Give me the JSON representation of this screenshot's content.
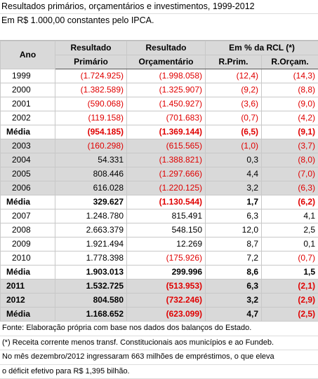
{
  "header": {
    "title": "Resultados primários, orçamentários  e investimentos, 1999-2012",
    "subtitle": "Em R$ 1.000,00 constantes pelo IPCA."
  },
  "table": {
    "head": [
      [
        "Ano",
        "Resultado",
        "Resultado",
        "Em % da RCL (*)"
      ],
      [
        "Primário",
        "Orçamentário",
        "R.Prim.",
        "R.Orçam."
      ]
    ],
    "rows": [
      [
        "1999",
        "(1.724.925)",
        "(1.998.058)",
        "(12,4)",
        "(14,3)"
      ],
      [
        "2000",
        "(1.382.589)",
        "(1.325.907)",
        "(9,2)",
        "(8,8)"
      ],
      [
        "2001",
        "(590.068)",
        "(1.450.927)",
        "(3,6)",
        "(9,0)"
      ],
      [
        "2002",
        "(119.158)",
        "(701.683)",
        "(0,7)",
        "(4,2)"
      ],
      [
        "Média",
        "(954.185)",
        "(1.369.144)",
        "(6,5)",
        "(9,1)"
      ],
      [
        "2003",
        "(160.298)",
        "(615.565)",
        "(1,0)",
        "(3,7)"
      ],
      [
        "2004",
        "54.331",
        "(1.388.821)",
        "0,3",
        "(8,0)"
      ],
      [
        "2005",
        "808.446",
        "(1.297.666)",
        "4,4",
        "(7,0)"
      ],
      [
        "2006",
        "616.028",
        "(1.220.125)",
        "3,2",
        "(6,3)"
      ],
      [
        "Média",
        "329.627",
        "(1.130.544)",
        "1,7",
        "(6,2)"
      ],
      [
        "2007",
        "1.248.780",
        "815.491",
        "6,3",
        "4,1"
      ],
      [
        "2008",
        "2.663.379",
        "548.150",
        "12,0",
        "2,5"
      ],
      [
        "2009",
        "1.921.494",
        "12.269",
        "8,7",
        "0,1"
      ],
      [
        "2010",
        "1.778.398",
        "(175.926)",
        "7,2",
        "(0,7)"
      ],
      [
        "Média",
        "1.903.013",
        "299.996",
        "8,6",
        "1,5"
      ],
      [
        "2011",
        "1.532.725",
        "(513.953)",
        "6,3",
        "(2,1)"
      ],
      [
        "2012",
        "804.580",
        "(732.246)",
        "3,2",
        "(2,9)"
      ],
      [
        "Média",
        "1.168.652",
        "(623.099)",
        "4,7",
        "(2,5)"
      ]
    ]
  },
  "notes": [
    "Fonte: Elaboração própria com base nos dados dos balanços do Estado.",
    "(*) Receita corrente menos transf. Constitucionais aos municípios e ao Fundeb.",
    "No mês dezembro/2012 ingressaram 663 milhões de empréstimos, o que eleva",
    "o déficit efetivo para R$ 1,395 bilhão."
  ]
}
